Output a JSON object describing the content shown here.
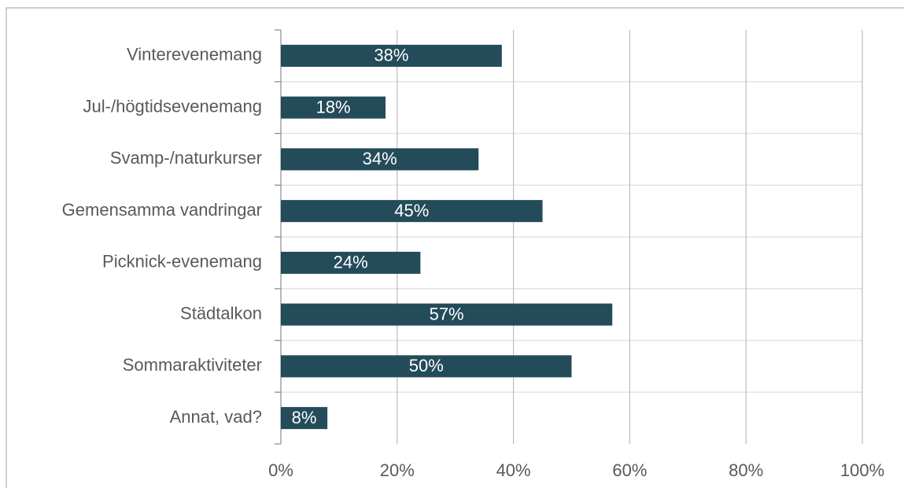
{
  "chart_data": {
    "type": "bar",
    "orientation": "horizontal",
    "categories": [
      "Vinterevenemang",
      "Jul-/högtidsevenemang",
      "Svamp-/naturkurser",
      "Gemensamma vandringar",
      "Picknick-evenemang",
      "Städtalkon",
      "Sommaraktiviteter",
      "Annat, vad?"
    ],
    "values": [
      38,
      18,
      34,
      45,
      24,
      57,
      50,
      8
    ],
    "value_labels": [
      "38%",
      "18%",
      "34%",
      "45%",
      "24%",
      "57%",
      "50%",
      "8%"
    ],
    "color": "#244b5a",
    "xlim": [
      0,
      100
    ],
    "xticks": [
      {
        "value": 0,
        "label": "0%"
      },
      {
        "value": 20,
        "label": "20%"
      },
      {
        "value": 40,
        "label": "40%"
      },
      {
        "value": 60,
        "label": "60%"
      },
      {
        "value": 80,
        "label": "80%"
      },
      {
        "value": 100,
        "label": "100%"
      }
    ],
    "grid": true
  }
}
